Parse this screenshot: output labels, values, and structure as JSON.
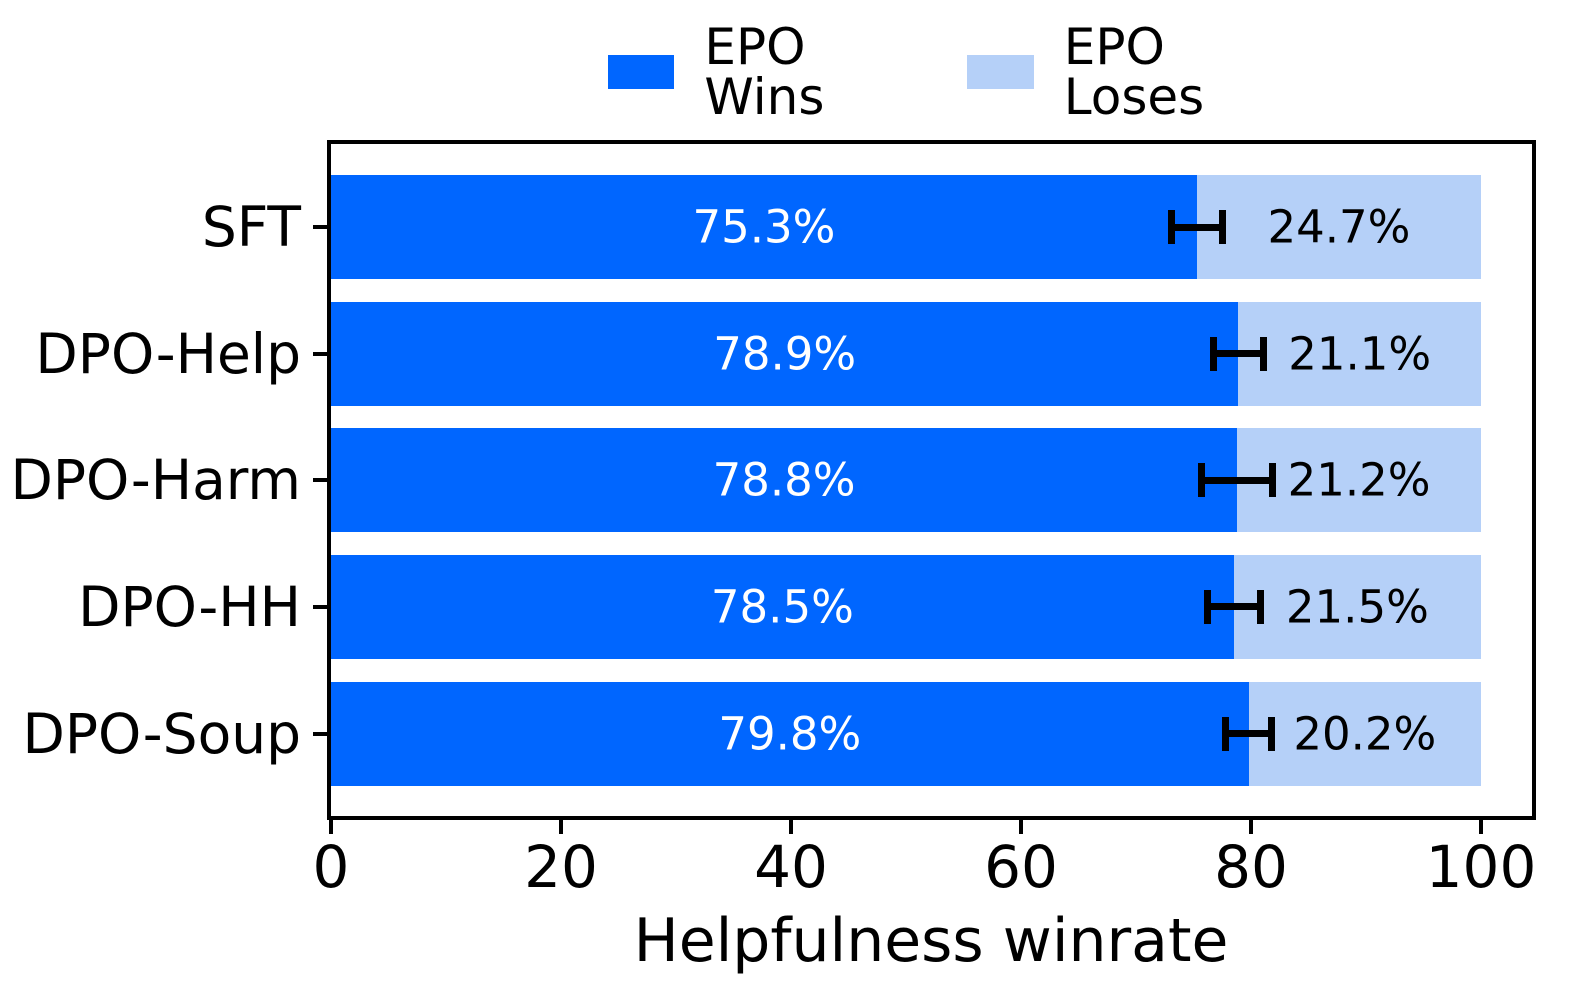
{
  "chart_data": {
    "type": "bar",
    "orientation": "horizontal-stacked",
    "title": "",
    "xlabel": "Helpfulness winrate",
    "ylabel": "",
    "categories": [
      "SFT",
      "DPO-Help",
      "DPO-Harm",
      "DPO-HH",
      "DPO-Soup"
    ],
    "series": [
      {
        "name": "EPO Wins",
        "color": "#0066FF",
        "values": [
          75.3,
          78.9,
          78.8,
          78.5,
          79.8
        ],
        "labels": [
          "75.3%",
          "78.9%",
          "78.8%",
          "78.5%",
          "79.8%"
        ],
        "label_color": "#ffffff"
      },
      {
        "name": "EPO Loses",
        "color": "#B5D0F8",
        "values": [
          24.7,
          21.1,
          21.2,
          21.5,
          20.2
        ],
        "labels": [
          "24.7%",
          "21.1%",
          "21.2%",
          "21.5%",
          "20.2%"
        ],
        "label_color": "#000000"
      }
    ],
    "error_bars": {
      "on_series": "EPO Wins",
      "plus_minus": [
        2.2,
        2.2,
        3.1,
        2.3,
        2.0
      ],
      "color": "#000000"
    },
    "xticks": [
      0,
      20,
      40,
      60,
      80,
      100
    ],
    "xlim": [
      0,
      104.5
    ],
    "grid": false,
    "legend_position": "top-center",
    "axis_color": "#000000",
    "background_color": "#ffffff"
  }
}
